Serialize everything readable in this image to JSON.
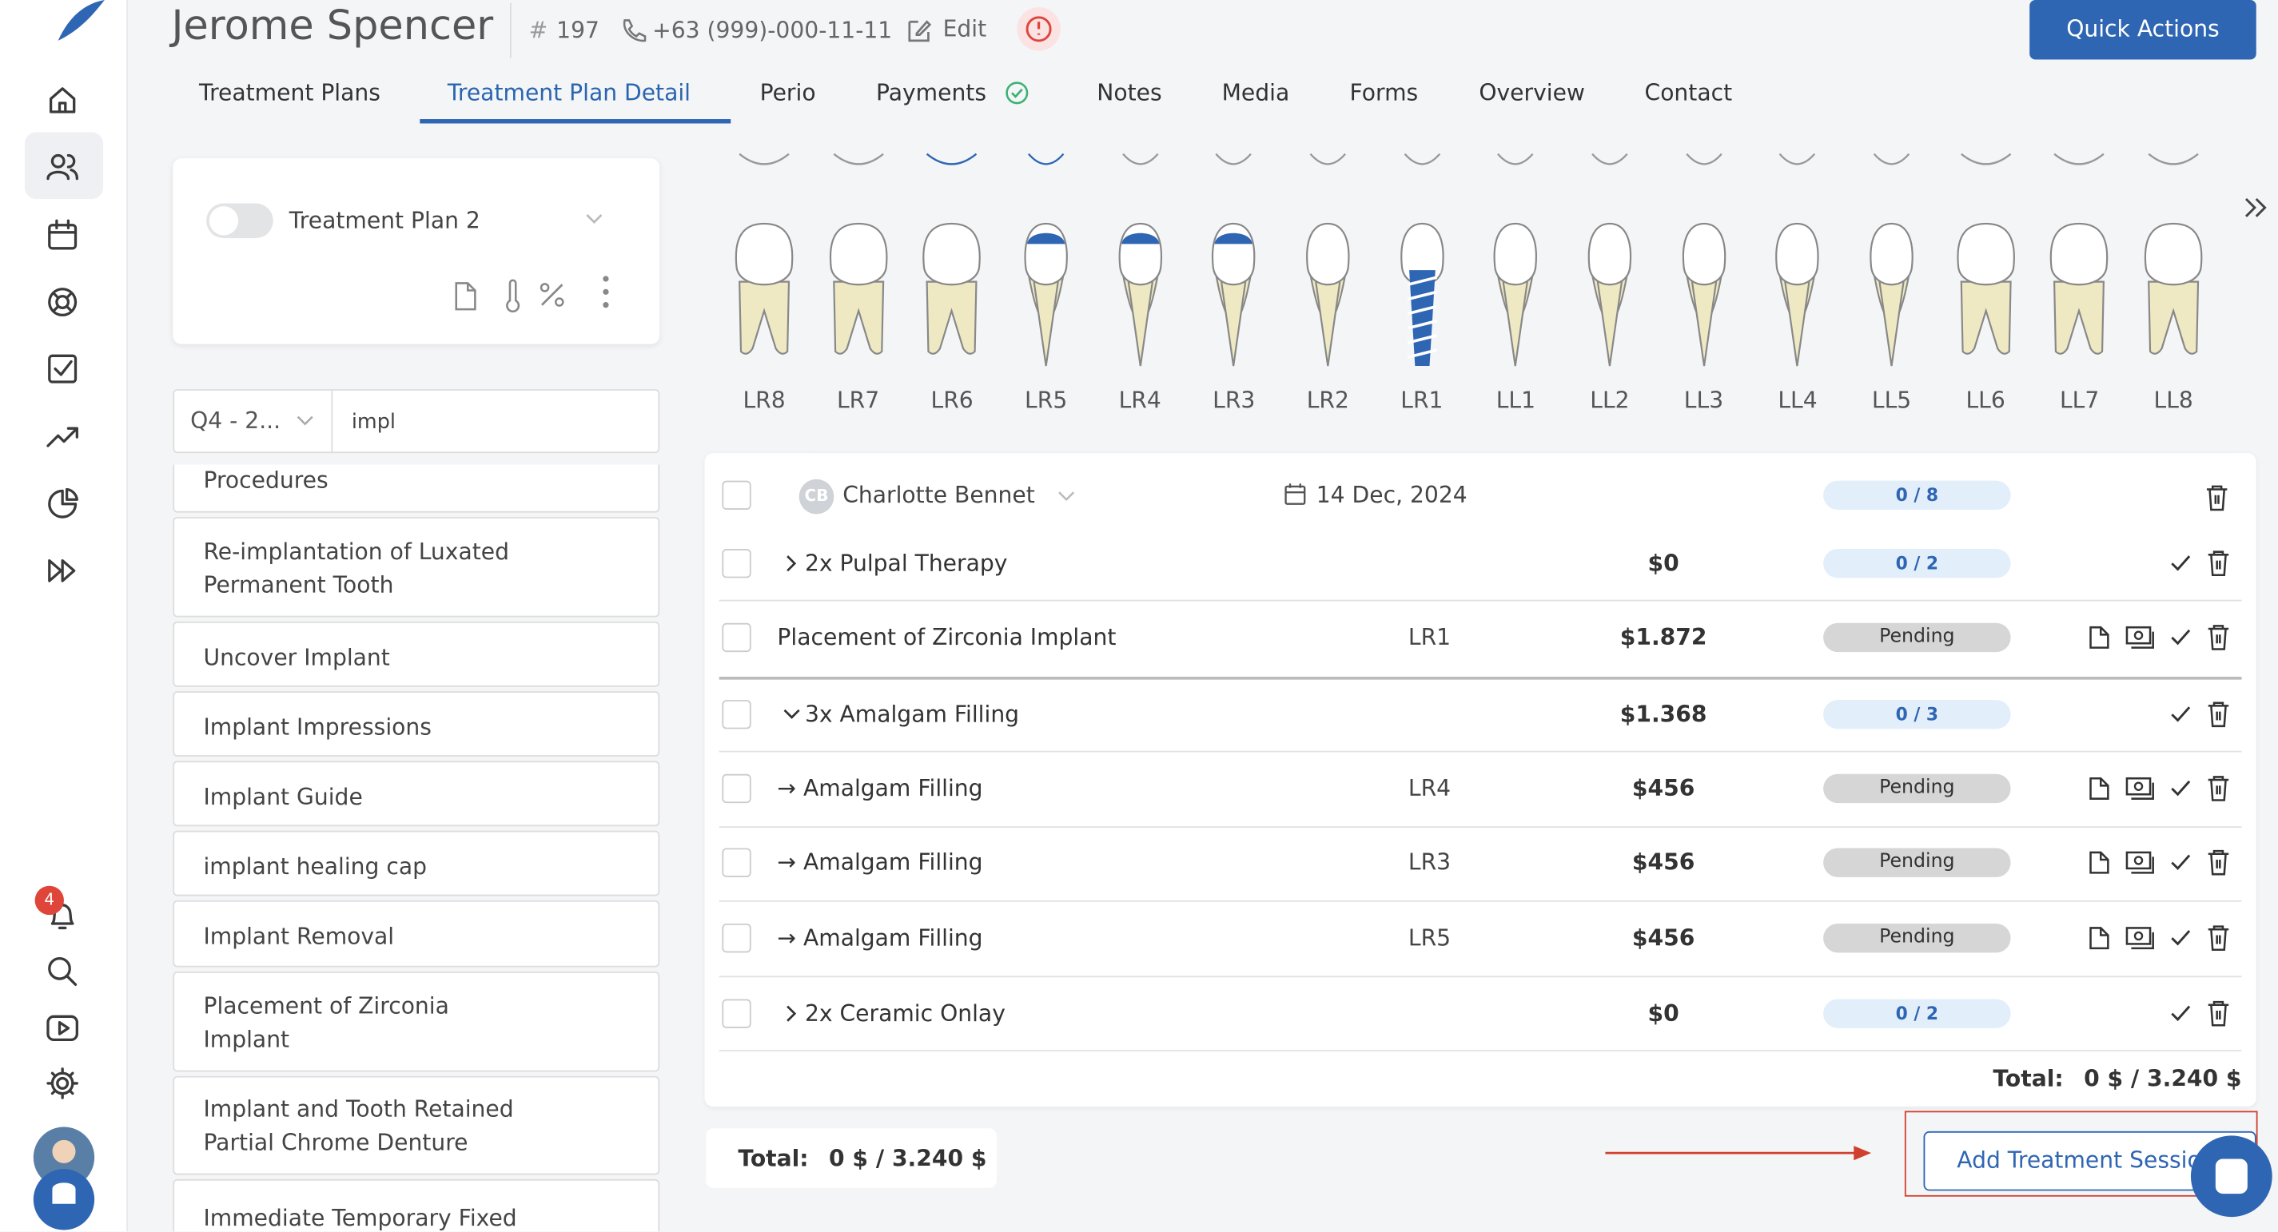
{
  "header": {
    "name": "Jerome Spencer",
    "hash": "#",
    "id": "197",
    "phone": "+63 (999)-000-11-11",
    "edit": "Edit",
    "quick_actions": "Quick Actions"
  },
  "tabs": [
    "Treatment Plans",
    "Treatment Plan Detail",
    "Perio",
    "Payments",
    "Notes",
    "Media",
    "Forms",
    "Overview",
    "Contact"
  ],
  "active_tab": "Treatment Plan Detail",
  "notifications": "4",
  "plan": {
    "name": "Treatment Plan 2",
    "filter": "Q4 - 2...",
    "search": "impl"
  },
  "procedures": [
    "Procedures",
    "Re-implantation of Luxated Permanent Tooth",
    "Uncover Implant",
    "Implant Impressions",
    "Implant Guide",
    "implant healing cap",
    "Implant Removal",
    "Placement of Zirconia Implant",
    "Implant and Tooth Retained Partial Chrome Denture",
    "Immediate Temporary Fixed"
  ],
  "teeth": [
    "LR8",
    "LR7",
    "LR6",
    "LR5",
    "LR4",
    "LR3",
    "LR2",
    "LR1",
    "LL1",
    "LL2",
    "LL3",
    "LL4",
    "LL5",
    "LL6",
    "LL7",
    "LL8"
  ],
  "session": {
    "initials": "CB",
    "dentist": "Charlotte Bennet",
    "date": "14 Dec, 2024",
    "progress": "0 / 8",
    "rows": [
      {
        "name": "2x Pulpal Therapy",
        "price": "$0",
        "status": "0 / 2"
      },
      {
        "name": "Placement of Zirconia Implant",
        "tooth": "LR1",
        "price": "$1.872",
        "status": "Pending"
      },
      {
        "name": "3x Amalgam Filling",
        "price": "$1.368",
        "status": "0 / 3"
      },
      {
        "name": "→ Amalgam Filling",
        "tooth": "LR4",
        "price": "$456",
        "status": "Pending"
      },
      {
        "name": "→ Amalgam Filling",
        "tooth": "LR3",
        "price": "$456",
        "status": "Pending"
      },
      {
        "name": "→ Amalgam Filling",
        "tooth": "LR5",
        "price": "$456",
        "status": "Pending"
      },
      {
        "name": "2x Ceramic Onlay",
        "price": "$0",
        "status": "0 / 2"
      }
    ],
    "total_label": "Total:",
    "total": "0 $ / 3.240 $"
  },
  "add_session": "Add Treatment Session"
}
